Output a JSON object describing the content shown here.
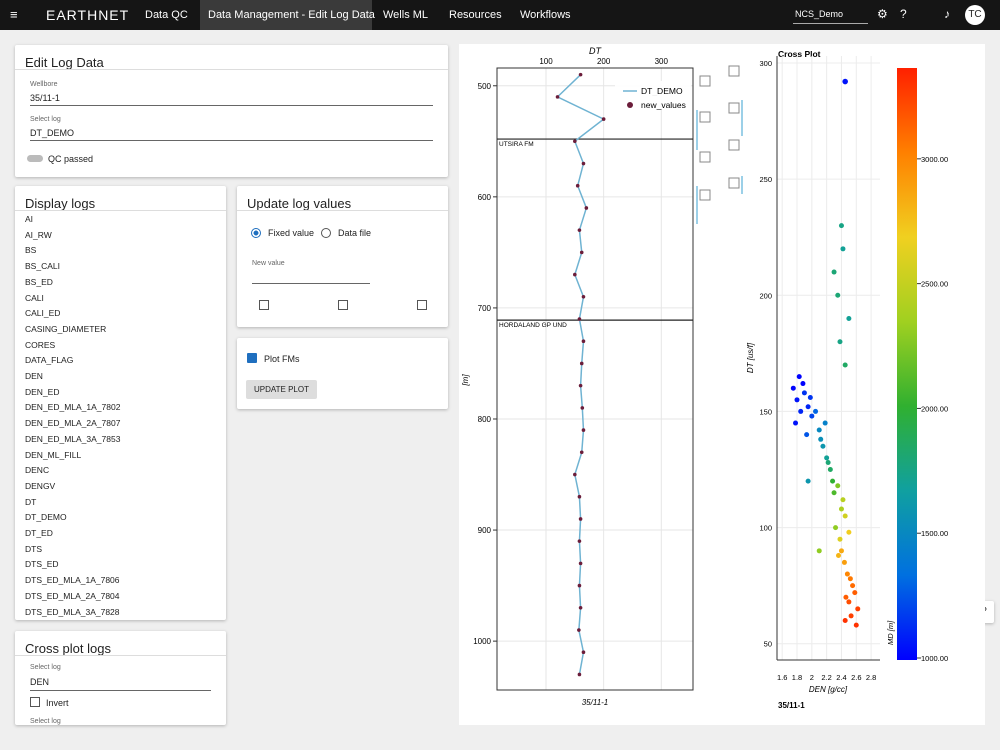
{
  "nav": {
    "logo": "EARTHNET",
    "items": [
      "Data QC",
      "Data Management - Edit Log Data",
      "Wells ML",
      "Resources",
      "Workflows"
    ],
    "project": "NCS_Demo",
    "avatar": "TC"
  },
  "edit_log": {
    "title": "Edit Log Data",
    "wellbore_label": "Wellbore",
    "wellbore": "35/11-1",
    "log_label": "Select log",
    "log": "DT_DEMO",
    "qc": "QC passed"
  },
  "display_logs": {
    "title": "Display logs",
    "items": [
      "AI",
      "AI_RW",
      "BS",
      "BS_CALI",
      "BS_ED",
      "CALI",
      "CALI_ED",
      "CASING_DIAMETER",
      "CORES",
      "DATA_FLAG",
      "DEN",
      "DEN_ED",
      "DEN_ED_MLA_1A_7802",
      "DEN_ED_MLA_2A_7807",
      "DEN_ED_MLA_3A_7853",
      "DEN_ML_FILL",
      "DENC",
      "DENGV",
      "DT",
      "DT_DEMO",
      "DT_ED",
      "DTS",
      "DTS_ED",
      "DTS_ED_MLA_1A_7806",
      "DTS_ED_MLA_2A_7804",
      "DTS_ED_MLA_3A_7828"
    ]
  },
  "update": {
    "title": "Update log values",
    "options": [
      "Fixed value",
      "Data file"
    ],
    "new_value_label": "New value"
  },
  "plot_fms": {
    "checkbox": "Plot FMs",
    "button": "UPDATE PLOT"
  },
  "cross_logs": {
    "title": "Cross plot logs",
    "select_label": "Select log",
    "select": "DEN",
    "invert": "Invert",
    "select_label2": "Select log"
  },
  "chart_data": [
    {
      "type": "log",
      "title": "DT",
      "ylabel": "[m]",
      "xlabel": "35/11-1",
      "xlim": [
        15,
        355
      ],
      "xticks": [
        100,
        200,
        300
      ],
      "ylim": [
        484,
        1044
      ],
      "y_inverted": true,
      "yticks": [
        500,
        600,
        700,
        800,
        900,
        1000
      ],
      "grid": true,
      "legend": "top-right",
      "depth": [
        490,
        510,
        530,
        550,
        570,
        590,
        610,
        630,
        650,
        670,
        690,
        710,
        730,
        750,
        770,
        790,
        810,
        830,
        850,
        870,
        890,
        910,
        930,
        950,
        970,
        990,
        1010,
        1030
      ],
      "series": [
        {
          "name": "DT_DEMO",
          "color": "#6fb3d2",
          "style": "line",
          "values": [
            160,
            120,
            200,
            150,
            165,
            155,
            170,
            158,
            162,
            150,
            165,
            158,
            165,
            162,
            160,
            163,
            165,
            162,
            150,
            158,
            160,
            158,
            160,
            158,
            160,
            157,
            165,
            158
          ]
        },
        {
          "name": "new_values",
          "color": "#6b1d3a",
          "style": "points",
          "values": [
            160,
            120,
            200,
            150,
            165,
            155,
            170,
            158,
            162,
            150,
            165,
            158,
            165,
            162,
            160,
            163,
            165,
            162,
            150,
            158,
            160,
            158,
            160,
            158,
            160,
            157,
            165,
            158
          ]
        }
      ],
      "formations": [
        {
          "name": "UTSIRA FM",
          "depth": 548
        },
        {
          "name": "HORDALAND GP UND",
          "depth": 711
        }
      ]
    },
    {
      "type": "scatter",
      "title": "Cross Plot",
      "xlabel": "DEN [g/cc]",
      "ylabel": "DT [us/f]",
      "footer": "35/11-1",
      "xlim": [
        1.53,
        2.92
      ],
      "xticks": [
        1.6,
        1.8,
        2,
        2.2,
        2.4,
        2.6,
        2.8
      ],
      "ylim": [
        43,
        303
      ],
      "yticks": [
        50,
        100,
        150,
        200,
        250,
        300
      ],
      "grid": true,
      "x": [
        2.45,
        1.75,
        1.8,
        1.85,
        1.9,
        1.95,
        2.0,
        1.78,
        1.88,
        1.98,
        2.05,
        1.83,
        1.93,
        2.1,
        2.15,
        2.2,
        2.18,
        2.25,
        2.12,
        2.28,
        2.22,
        2.3,
        2.35,
        2.4,
        2.32,
        2.45,
        2.38,
        2.42,
        2.5,
        2.36,
        2.44,
        2.48,
        2.52,
        2.55,
        2.4,
        2.46,
        2.5,
        2.58,
        2.62,
        2.45,
        2.53,
        2.6,
        2.35,
        2.42,
        2.38,
        2.45,
        2.5,
        2.3,
        2.4,
        1.95,
        2.1
      ],
      "values": [
        292,
        160,
        155,
        150,
        158,
        152,
        148,
        145,
        162,
        156,
        150,
        165,
        140,
        142,
        135,
        130,
        145,
        125,
        138,
        120,
        128,
        115,
        118,
        108,
        100,
        105,
        95,
        112,
        98,
        88,
        85,
        80,
        78,
        75,
        90,
        70,
        68,
        72,
        65,
        60,
        62,
        58,
        200,
        220,
        180,
        170,
        190,
        210,
        230,
        120,
        90
      ],
      "color_values": [
        1050,
        1000,
        1050,
        1100,
        1150,
        1100,
        1200,
        1050,
        1000,
        1150,
        1300,
        1000,
        1250,
        1500,
        1600,
        1700,
        1450,
        1850,
        1550,
        2000,
        1800,
        2100,
        2250,
        2400,
        2300,
        2550,
        2600,
        2450,
        2700,
        2800,
        2900,
        3000,
        3050,
        3100,
        2850,
        3150,
        3200,
        3150,
        3250,
        3300,
        3250,
        3300,
        1800,
        1700,
        1750,
        1850,
        1700,
        1800,
        1750,
        1600,
        2300
      ],
      "colorbar": {
        "label": "MD [m]",
        "lim": [
          992,
          3364
        ],
        "ticks": [
          {
            "value": 1000,
            "label": "1000.00"
          },
          {
            "value": 1500,
            "label": "1500.00"
          },
          {
            "value": 2000,
            "label": "2000.00"
          },
          {
            "value": 2500,
            "label": "2500.00"
          },
          {
            "value": 3000,
            "label": "3000.00"
          }
        ],
        "colors": [
          "#0000ff",
          "#0070e0",
          "#10a0a0",
          "#30b030",
          "#a0d020",
          "#f0d020",
          "#ff8000",
          "#ff2000"
        ]
      }
    }
  ]
}
